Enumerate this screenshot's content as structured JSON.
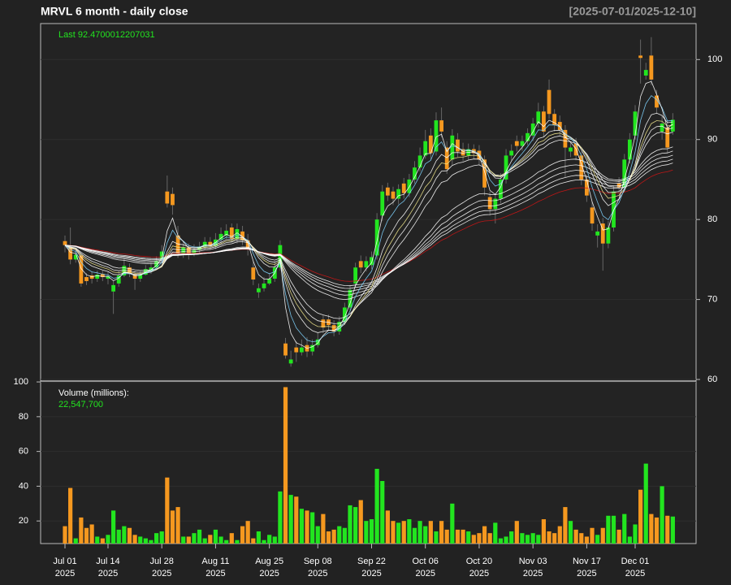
{
  "chart_data": {
    "type": "candlestick",
    "title": "MRVL  6 month - daily close",
    "subtitle": "[2025-07-01/2025-12-10]",
    "last_label": "Last 92.4700012207031",
    "up_color": "#22e51f",
    "down_color": "#f5981f",
    "grid": true,
    "x": [
      "2025-07-01",
      "2025-07-02",
      "2025-07-03",
      "2025-07-07",
      "2025-07-08",
      "2025-07-09",
      "2025-07-10",
      "2025-07-11",
      "2025-07-14",
      "2025-07-15",
      "2025-07-16",
      "2025-07-17",
      "2025-07-18",
      "2025-07-21",
      "2025-07-22",
      "2025-07-23",
      "2025-07-24",
      "2025-07-25",
      "2025-07-28",
      "2025-07-29",
      "2025-07-30",
      "2025-07-31",
      "2025-08-01",
      "2025-08-04",
      "2025-08-05",
      "2025-08-06",
      "2025-08-07",
      "2025-08-08",
      "2025-08-11",
      "2025-08-12",
      "2025-08-13",
      "2025-08-14",
      "2025-08-15",
      "2025-08-18",
      "2025-08-19",
      "2025-08-20",
      "2025-08-21",
      "2025-08-22",
      "2025-08-25",
      "2025-08-26",
      "2025-08-27",
      "2025-08-28",
      "2025-08-29",
      "2025-09-02",
      "2025-09-03",
      "2025-09-04",
      "2025-09-05",
      "2025-09-08",
      "2025-09-09",
      "2025-09-10",
      "2025-09-11",
      "2025-09-12",
      "2025-09-15",
      "2025-09-16",
      "2025-09-17",
      "2025-09-18",
      "2025-09-19",
      "2025-09-22",
      "2025-09-23",
      "2025-09-24",
      "2025-09-25",
      "2025-09-26",
      "2025-09-29",
      "2025-09-30",
      "2025-10-01",
      "2025-10-02",
      "2025-10-03",
      "2025-10-06",
      "2025-10-07",
      "2025-10-08",
      "2025-10-09",
      "2025-10-10",
      "2025-10-13",
      "2025-10-14",
      "2025-10-15",
      "2025-10-16",
      "2025-10-17",
      "2025-10-20",
      "2025-10-21",
      "2025-10-22",
      "2025-10-23",
      "2025-10-24",
      "2025-10-27",
      "2025-10-28",
      "2025-10-29",
      "2025-10-30",
      "2025-10-31",
      "2025-11-03",
      "2025-11-04",
      "2025-11-05",
      "2025-11-06",
      "2025-11-07",
      "2025-11-10",
      "2025-11-11",
      "2025-11-12",
      "2025-11-13",
      "2025-11-14",
      "2025-11-17",
      "2025-11-18",
      "2025-11-19",
      "2025-11-20",
      "2025-11-21",
      "2025-11-24",
      "2025-11-25",
      "2025-11-26",
      "2025-11-28",
      "2025-12-01",
      "2025-12-02",
      "2025-12-03",
      "2025-12-04",
      "2025-12-05",
      "2025-12-08",
      "2025-12-09",
      "2025-12-10"
    ],
    "open": [
      77.3,
      76.5,
      75.0,
      75.5,
      72.8,
      73.0,
      72.6,
      73.2,
      72.6,
      71.0,
      72.0,
      73.0,
      74.0,
      73.2,
      72.6,
      73.1,
      73.6,
      74.0,
      75.0,
      83.5,
      83.2,
      78.0,
      75.8,
      76.5,
      75.8,
      76.2,
      76.6,
      77.2,
      76.7,
      77.5,
      78.0,
      79.0,
      77.6,
      78.5,
      77.4,
      74.0,
      70.9,
      71.4,
      72.0,
      72.6,
      74.0,
      64.5,
      62.0,
      64.0,
      63.4,
      64.3,
      63.5,
      64.3,
      67.5,
      67.5,
      66.8,
      66.0,
      67.2,
      69.0,
      72.0,
      74.8,
      74.0,
      74.3,
      75.5,
      80.5,
      84.0,
      83.5,
      82.6,
      84.5,
      83.3,
      85.0,
      86.5,
      88.0,
      90.5,
      88.5,
      92.4,
      89.0,
      87.5,
      90.0,
      88.8,
      88.0,
      88.8,
      88.6,
      87.5,
      82.8,
      81.3,
      82.6,
      85.0,
      88.0,
      89.8,
      89.2,
      89.8,
      90.5,
      92.0,
      93.5,
      96.2,
      93.2,
      92.2,
      91.2,
      88.5,
      89.5,
      88.0,
      85.0,
      81.5,
      78.0,
      79.5,
      77.0,
      79.0,
      84.5,
      84.0,
      87.5,
      90.5,
      100.5,
      98.0,
      100.5,
      95.5,
      91.0,
      91.5,
      91.0
    ],
    "high": [
      78.0,
      79.0,
      76.2,
      75.8,
      73.3,
      73.5,
      73.6,
      73.6,
      73.5,
      72.3,
      73.5,
      75.2,
      74.5,
      73.6,
      73.6,
      74.3,
      74.6,
      75.4,
      76.8,
      85.5,
      84.0,
      79.2,
      77.2,
      77.0,
      76.9,
      77.2,
      77.8,
      77.8,
      78.3,
      79.0,
      79.4,
      79.5,
      79.5,
      79.2,
      78.2,
      74.8,
      72.0,
      72.8,
      73.3,
      74.8,
      77.4,
      65.2,
      63.6,
      64.8,
      65.0,
      65.3,
      65.0,
      65.8,
      68.0,
      68.1,
      67.4,
      67.9,
      69.6,
      71.8,
      74.6,
      75.5,
      75.4,
      76.0,
      80.8,
      84.3,
      84.6,
      84.1,
      84.4,
      85.2,
      85.7,
      87.3,
      89.0,
      91.2,
      91.4,
      93.4,
      94.0,
      89.8,
      91.3,
      90.8,
      89.6,
      89.5,
      89.4,
      89.3,
      88.0,
      83.5,
      83.3,
      85.8,
      88.8,
      89.4,
      90.5,
      90.5,
      91.4,
      92.7,
      94.6,
      94.2,
      97.5,
      93.8,
      93.0,
      91.8,
      89.8,
      90.2,
      88.5,
      85.6,
      82.3,
      79.4,
      80.2,
      79.8,
      84.2,
      85.3,
      88.2,
      90.8,
      94.3,
      102.5,
      99.6,
      102.8,
      96.2,
      93.0,
      92.3,
      93.3
    ],
    "low": [
      75.9,
      74.4,
      74.6,
      71.6,
      71.8,
      72.0,
      72.2,
      72.3,
      71.9,
      68.2,
      71.6,
      72.8,
      72.8,
      71.2,
      72.2,
      73.0,
      73.2,
      74.0,
      74.6,
      81.5,
      80.6,
      75.2,
      75.2,
      75.0,
      75.4,
      75.8,
      76.2,
      76.2,
      76.3,
      77.0,
      77.6,
      77.2,
      77.0,
      76.8,
      75.5,
      71.8,
      70.2,
      71.0,
      71.8,
      72.2,
      73.6,
      62.6,
      61.6,
      62.2,
      63.0,
      62.8,
      63.0,
      64.0,
      65.8,
      66.2,
      65.4,
      65.6,
      66.8,
      68.6,
      71.5,
      73.3,
      73.5,
      73.8,
      75.0,
      79.8,
      82.3,
      81.8,
      81.9,
      82.6,
      82.8,
      84.5,
      86.0,
      87.6,
      87.5,
      88.0,
      90.3,
      85.7,
      86.8,
      87.8,
      87.3,
      87.4,
      87.6,
      86.8,
      83.0,
      80.5,
      79.5,
      82.0,
      84.5,
      87.4,
      88.5,
      88.6,
      89.3,
      89.8,
      91.5,
      90.3,
      92.6,
      91.0,
      90.5,
      85.3,
      87.8,
      87.4,
      84.3,
      82.2,
      78.6,
      76.5,
      73.6,
      76.4,
      78.5,
      83.2,
      83.5,
      87.0,
      90.0,
      97.0,
      97.5,
      96.8,
      93.2,
      90.0,
      88.3,
      90.6
    ],
    "close": [
      76.8,
      75.0,
      75.6,
      72.0,
      72.3,
      72.6,
      73.1,
      72.8,
      72.9,
      71.8,
      73.0,
      74.2,
      73.2,
      72.6,
      73.1,
      73.8,
      74.0,
      74.8,
      76.0,
      82.0,
      81.8,
      75.8,
      76.5,
      75.6,
      76.2,
      76.6,
      77.2,
      76.7,
      77.5,
      78.2,
      78.6,
      77.6,
      78.8,
      77.4,
      76.3,
      72.5,
      71.4,
      72.0,
      72.6,
      74.0,
      76.8,
      63.0,
      62.5,
      63.4,
      64.0,
      63.5,
      64.3,
      65.0,
      66.5,
      66.8,
      66.0,
      67.2,
      69.0,
      71.2,
      74.0,
      74.0,
      74.8,
      75.3,
      80.0,
      83.5,
      83.0,
      82.6,
      83.8,
      83.3,
      85.0,
      86.5,
      88.0,
      89.8,
      88.3,
      92.4,
      91.0,
      86.3,
      90.5,
      88.5,
      88.0,
      88.8,
      88.3,
      87.5,
      84.0,
      81.3,
      82.6,
      85.0,
      88.0,
      88.6,
      89.2,
      89.8,
      90.8,
      92.0,
      93.5,
      91.0,
      93.2,
      91.8,
      91.2,
      89.0,
      89.0,
      88.0,
      85.0,
      83.0,
      79.5,
      78.5,
      77.0,
      79.0,
      83.5,
      84.0,
      87.5,
      90.0,
      93.5,
      100.2,
      98.7,
      97.5,
      94.0,
      92.0,
      89.0,
      92.47
    ],
    "ylim": [
      59.8,
      104.5
    ],
    "yticks": [
      60,
      70,
      80,
      90,
      100
    ],
    "xticks": [
      {
        "value": "2025-07-01",
        "label": [
          "Jul 01",
          "2025"
        ]
      },
      {
        "value": "2025-07-14",
        "label": [
          "Jul 14",
          "2025"
        ]
      },
      {
        "value": "2025-07-28",
        "label": [
          "Jul 28",
          "2025"
        ]
      },
      {
        "value": "2025-08-11",
        "label": [
          "Aug 11",
          "2025"
        ]
      },
      {
        "value": "2025-08-25",
        "label": [
          "Aug 25",
          "2025"
        ]
      },
      {
        "value": "2025-09-08",
        "label": [
          "Sep 08",
          "2025"
        ]
      },
      {
        "value": "2025-09-22",
        "label": [
          "Sep 22",
          "2025"
        ]
      },
      {
        "value": "2025-10-06",
        "label": [
          "Oct 06",
          "2025"
        ]
      },
      {
        "value": "2025-10-20",
        "label": [
          "Oct 20",
          "2025"
        ]
      },
      {
        "value": "2025-11-03",
        "label": [
          "Nov 03",
          "2025"
        ]
      },
      {
        "value": "2025-11-17",
        "label": [
          "Nov 17",
          "2025"
        ]
      },
      {
        "value": "2025-12-01",
        "label": [
          "Dec 01",
          "2025"
        ]
      }
    ],
    "volume": {
      "label": "Volume (millions):",
      "last_label": "22,547,700",
      "values": [
        17,
        39,
        10,
        22,
        16,
        18,
        11,
        10,
        12,
        26,
        15,
        17,
        16,
        12,
        11,
        10,
        9,
        13,
        14,
        45,
        26,
        28,
        11,
        11,
        13,
        15,
        10,
        12,
        15,
        11,
        9,
        13,
        9,
        17,
        20,
        10,
        14,
        9,
        12,
        11,
        37,
        97,
        35,
        34,
        27,
        26,
        25,
        17,
        24,
        14,
        15,
        17,
        16,
        29,
        28,
        32,
        20,
        21,
        50,
        43,
        26,
        20,
        19,
        20,
        21,
        16,
        20,
        17,
        20,
        14,
        20,
        15,
        30,
        15,
        15,
        14,
        12,
        13,
        17,
        13,
        19,
        10,
        11,
        14,
        20,
        13,
        12,
        13,
        12,
        21,
        14,
        13,
        17,
        28,
        20,
        15,
        13,
        11,
        16,
        12,
        16,
        23,
        23,
        15,
        24,
        11,
        18,
        38,
        53,
        24,
        22,
        40,
        23,
        22.5477
      ],
      "ylim": [
        7,
        100.5
      ],
      "yticks": [
        20,
        40,
        60,
        80,
        100
      ]
    }
  }
}
